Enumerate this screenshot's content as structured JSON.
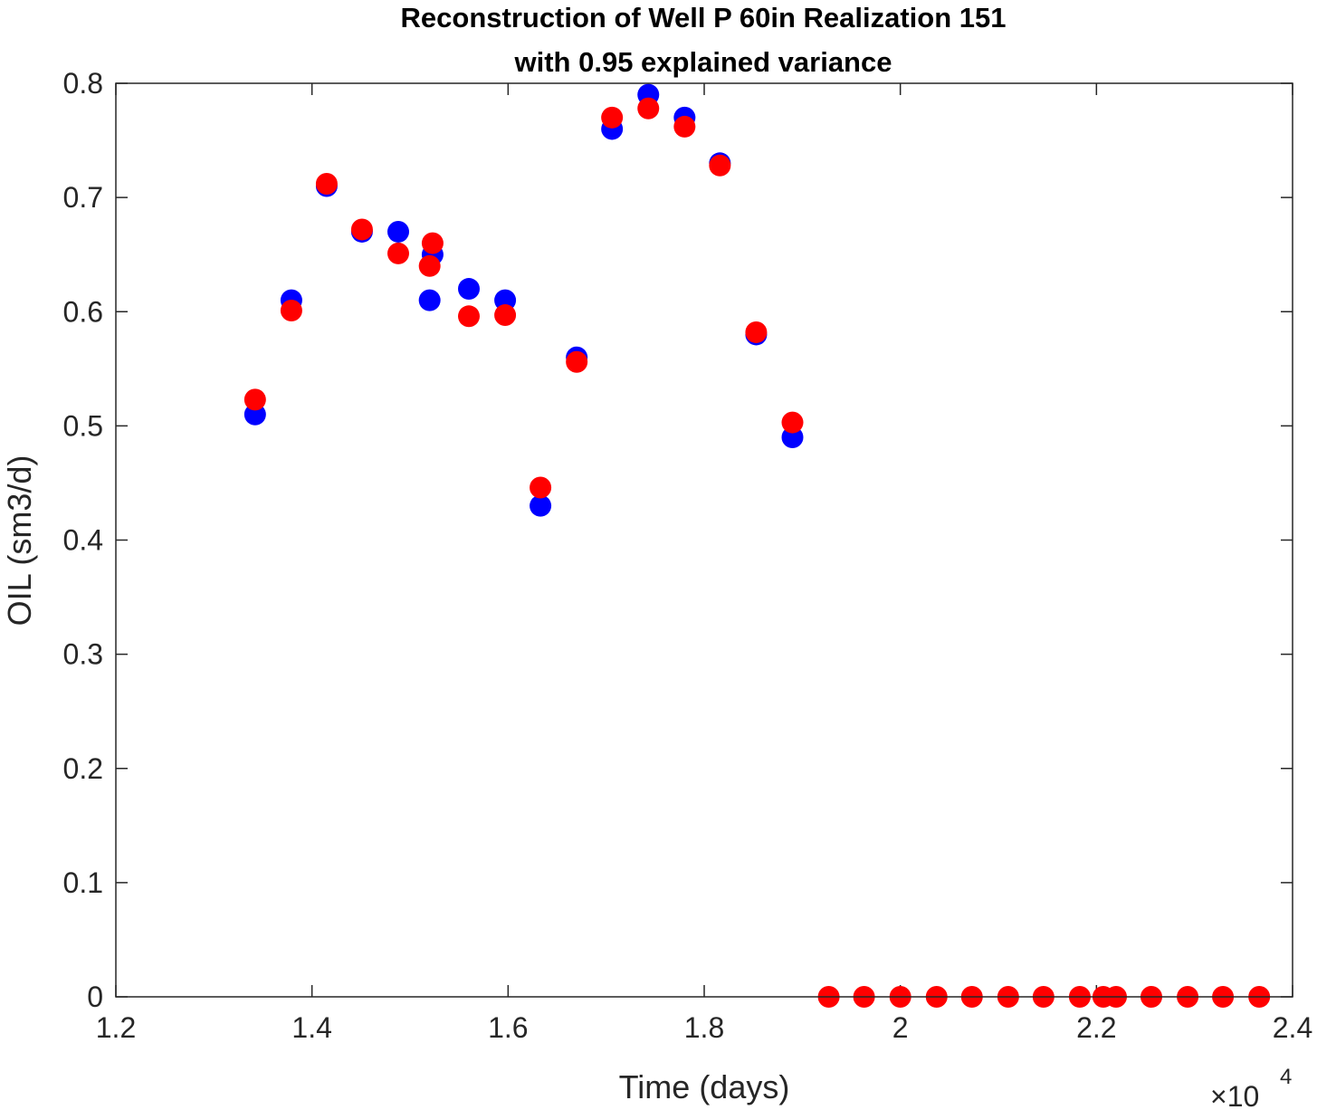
{
  "chart_data": {
    "type": "scatter",
    "title_lines": [
      "Reconstruction of Well P 60in Realization 151",
      "with 0.95 explained variance"
    ],
    "xlabel": "Time (days)",
    "ylabel": "OIL (sm3/d)",
    "x_exponent_base": "×10",
    "x_exponent_power": "4",
    "xlim": [
      12000,
      24000
    ],
    "ylim": [
      0,
      0.8
    ],
    "x_ticks": [
      12000,
      14000,
      16000,
      18000,
      20000,
      22000,
      24000
    ],
    "x_tick_labels": [
      "1.2",
      "1.4",
      "1.6",
      "1.8",
      "2",
      "2.2",
      "2.4"
    ],
    "y_ticks": [
      0,
      0.1,
      0.2,
      0.3,
      0.4,
      0.5,
      0.6,
      0.7,
      0.8
    ],
    "y_tick_labels": [
      "0",
      "0.1",
      "0.2",
      "0.3",
      "0.4",
      "0.5",
      "0.6",
      "0.7",
      "0.8"
    ],
    "grid": false,
    "legend": "none",
    "series": [
      {
        "color": "#0000ff",
        "points": [
          [
            13420,
            0.51
          ],
          [
            13790,
            0.61
          ],
          [
            14150,
            0.71
          ],
          [
            14510,
            0.67
          ],
          [
            14880,
            0.67
          ],
          [
            15200,
            0.61
          ],
          [
            15230,
            0.65
          ],
          [
            15600,
            0.62
          ],
          [
            15970,
            0.61
          ],
          [
            16330,
            0.43
          ],
          [
            16700,
            0.56
          ],
          [
            17060,
            0.76
          ],
          [
            17430,
            0.79
          ],
          [
            17800,
            0.77
          ],
          [
            18160,
            0.73
          ],
          [
            18530,
            0.58
          ],
          [
            18900,
            0.49
          ]
        ]
      },
      {
        "color": "#ff0000",
        "points": [
          [
            13420,
            0.523
          ],
          [
            13790,
            0.601
          ],
          [
            14150,
            0.712
          ],
          [
            14510,
            0.672
          ],
          [
            14880,
            0.651
          ],
          [
            15200,
            0.64
          ],
          [
            15230,
            0.66
          ],
          [
            15600,
            0.596
          ],
          [
            15970,
            0.597
          ],
          [
            16330,
            0.446
          ],
          [
            16700,
            0.556
          ],
          [
            17060,
            0.77
          ],
          [
            17430,
            0.778
          ],
          [
            17800,
            0.762
          ],
          [
            18160,
            0.728
          ],
          [
            18530,
            0.582
          ],
          [
            18900,
            0.503
          ],
          [
            19270,
            0.0
          ],
          [
            19630,
            0.0
          ],
          [
            20000,
            0.0
          ],
          [
            20370,
            0.0
          ],
          [
            20730,
            0.0
          ],
          [
            21100,
            0.0
          ],
          [
            21460,
            0.0
          ],
          [
            21830,
            0.0
          ],
          [
            22070,
            0.0
          ],
          [
            22200,
            0.0
          ],
          [
            22560,
            0.0
          ],
          [
            22930,
            0.0
          ],
          [
            23290,
            0.0
          ],
          [
            23660,
            0.0
          ]
        ]
      }
    ]
  }
}
